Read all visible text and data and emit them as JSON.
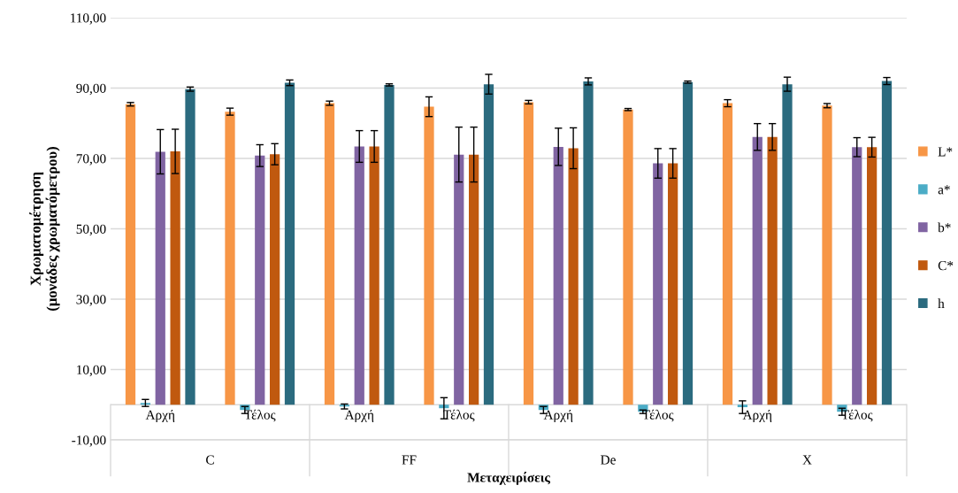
{
  "chart_data": {
    "type": "bar",
    "xlabel": "Μεταχειρίσεις",
    "ylabel": "Χρωματομέτρηση\n(μονάδες χρωματόμετρου)",
    "categories": [
      "Αρχή",
      "Τέλος",
      "Αρχή",
      "Τέλος",
      "Αρχή",
      "Τέλος",
      "Αρχή",
      "Τέλος"
    ],
    "annotations": [
      "C",
      "FF",
      "De",
      "X"
    ],
    "series": [
      {
        "name": "L*",
        "color": "#f79646",
        "values": [
          85.4,
          83.3,
          85.7,
          84.7,
          86.0,
          83.9,
          85.7,
          85.0
        ],
        "errors": [
          0.5,
          1.0,
          0.6,
          2.8,
          0.5,
          0.3,
          1.0,
          0.6
        ]
      },
      {
        "name": "a*",
        "color": "#4bacc6",
        "values": [
          0.5,
          -1.5,
          -0.5,
          -1.0,
          -1.5,
          -2.0,
          -0.7,
          -2.0
        ],
        "errors": [
          1.0,
          1.0,
          0.7,
          3.0,
          1.0,
          0.5,
          1.8,
          1.0
        ]
      },
      {
        "name": "b*",
        "color": "#8064a2",
        "values": [
          71.9,
          70.8,
          73.4,
          71.1,
          73.3,
          68.6,
          76.1,
          73.2
        ],
        "errors": [
          6.3,
          3.1,
          4.5,
          7.8,
          5.3,
          4.2,
          3.8,
          2.7
        ]
      },
      {
        "name": "C*",
        "color": "#c0590f",
        "values": [
          72.0,
          71.2,
          73.4,
          71.1,
          72.9,
          68.6,
          76.1,
          73.2
        ],
        "errors": [
          6.3,
          3.0,
          4.5,
          7.8,
          5.8,
          4.2,
          3.8,
          2.8
        ]
      },
      {
        "name": "h",
        "color": "#2b6b7f",
        "values": [
          89.7,
          91.5,
          90.9,
          91.1,
          91.9,
          91.7,
          91.1,
          92.0
        ],
        "errors": [
          0.6,
          0.8,
          0.3,
          2.8,
          1.0,
          0.3,
          2.0,
          1.0
        ]
      }
    ],
    "ylim": [
      -10,
      110
    ],
    "yticks": [
      {
        "value": -10,
        "label": "-10,00"
      },
      {
        "value": 10,
        "label": "10,00"
      },
      {
        "value": 30,
        "label": "30,00"
      },
      {
        "value": 50,
        "label": "50,00"
      },
      {
        "value": 70,
        "label": "70,00"
      },
      {
        "value": 90,
        "label": "90,00"
      },
      {
        "value": 110,
        "label": "110,00"
      }
    ],
    "grid": "y",
    "legend": "right"
  }
}
